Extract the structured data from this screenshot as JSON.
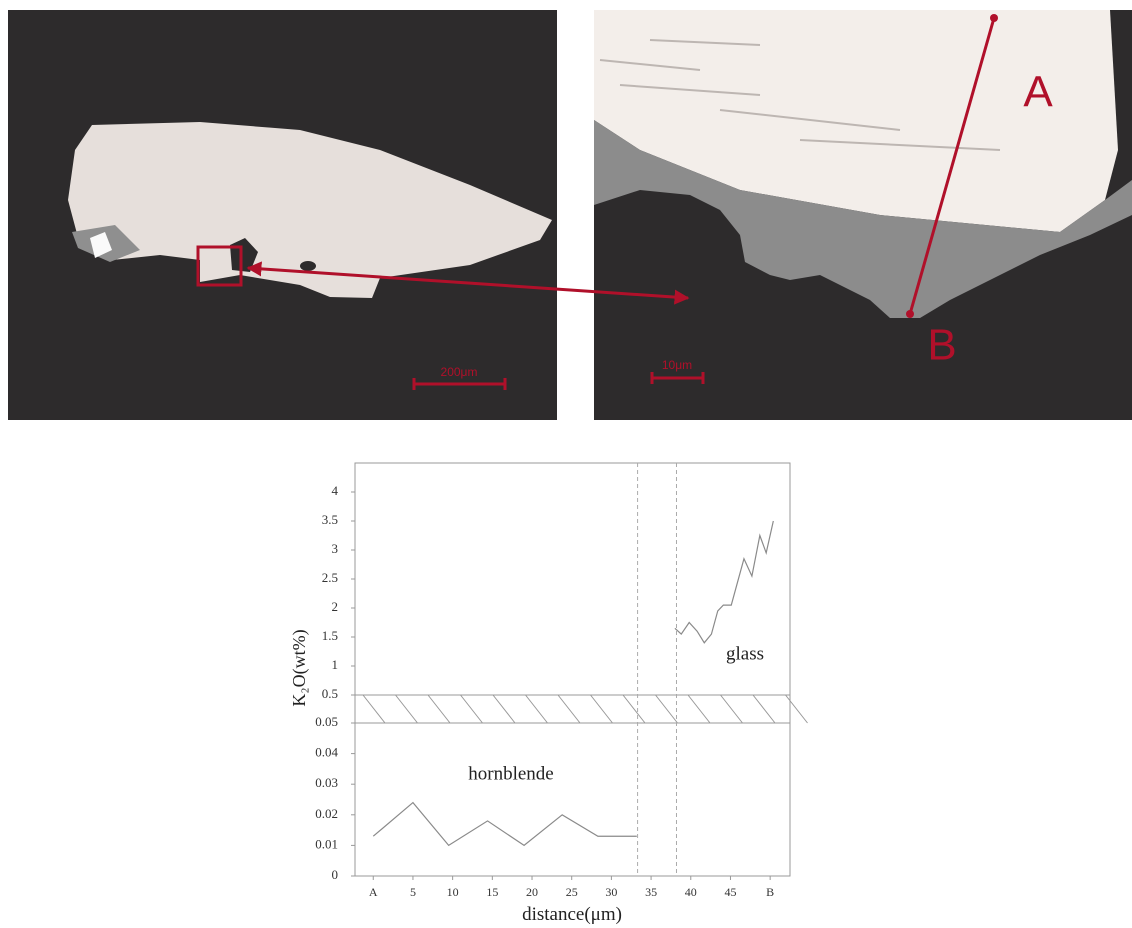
{
  "figure": {
    "left_image": {
      "scale_label": "200μm"
    },
    "right_image": {
      "scale_label": "10μm",
      "point_a": "A",
      "point_b": "B"
    }
  },
  "chart_data": {
    "type": "line",
    "x_label": "distance(μm)",
    "y_label": "K₂O(wt%)",
    "xlim": [
      -2.3,
      52.5
    ],
    "xticks": [
      {
        "value": 0,
        "label": "A"
      },
      5,
      10,
      15,
      20,
      25,
      30,
      35,
      40,
      45,
      {
        "value": 50,
        "label": "B"
      }
    ],
    "ylim": [
      0,
      4.5
    ],
    "ybreak": [
      0.05,
      0.5
    ],
    "yticks": [
      0,
      0.01,
      0.02,
      0.03,
      0.04,
      0.05,
      0.5,
      1,
      1.5,
      2,
      2.5,
      3,
      3.5,
      4
    ],
    "boundaries": [
      33.3,
      38.2
    ],
    "series": [
      {
        "name": "hornblende",
        "color": "#8a8a8a",
        "x": [
          0,
          5,
          9.5,
          14.4,
          19,
          23.8,
          28.3,
          33.2
        ],
        "values": [
          0.013,
          0.024,
          0.01,
          0.018,
          0.01,
          0.02,
          0.013,
          0.013
        ]
      },
      {
        "name": "glass",
        "color": "#8a8a8a",
        "x": [
          38,
          38.8,
          39.8,
          40.8,
          41.7,
          42.6,
          43.4,
          44.1,
          45.1,
          45.8,
          46.7,
          47.7,
          48.7,
          49.5,
          50.4
        ],
        "values": [
          1.65,
          1.55,
          1.75,
          1.6,
          1.4,
          1.55,
          1.95,
          2.05,
          2.05,
          2.4,
          2.85,
          2.55,
          3.25,
          2.95,
          3.5
        ]
      }
    ]
  }
}
